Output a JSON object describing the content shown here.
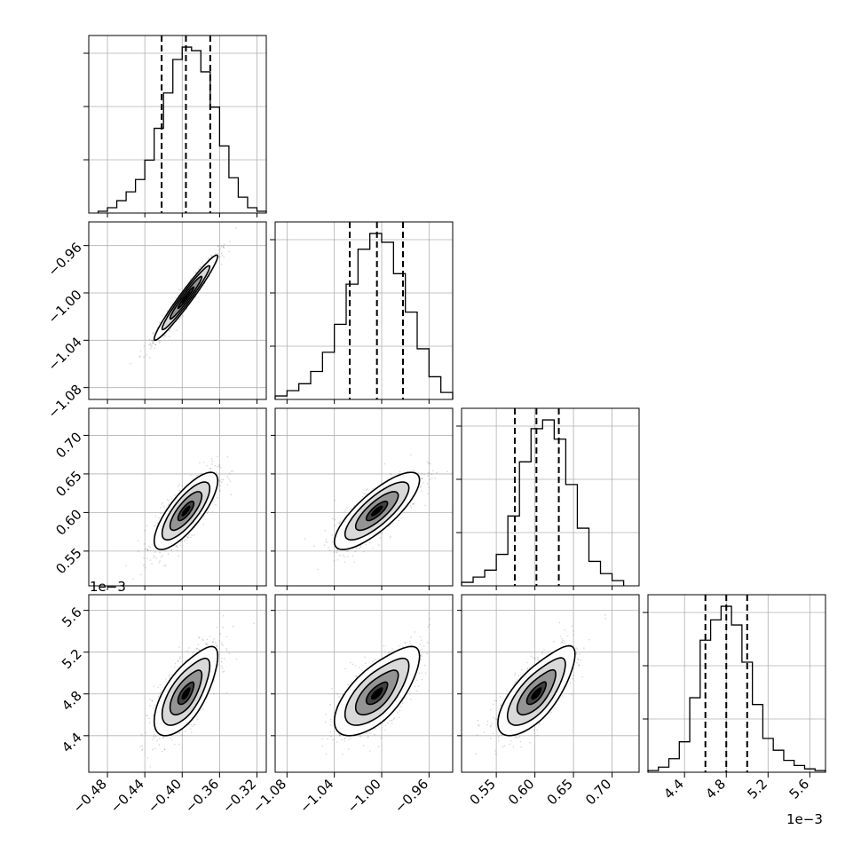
{
  "chart_data": {
    "type": "corner",
    "parameters": [
      {
        "index": 0,
        "range": [
          -0.5,
          -0.31
        ],
        "ticks": [
          -0.48,
          -0.44,
          -0.4,
          -0.36,
          -0.32
        ],
        "tick_labels": [
          "−0.48",
          "−0.44",
          "−0.40",
          "−0.36",
          "−0.32"
        ],
        "offset": ""
      },
      {
        "index": 1,
        "range": [
          -1.09,
          -0.94
        ],
        "ticks": [
          -1.08,
          -1.04,
          -1.0,
          -0.96
        ],
        "tick_labels": [
          "−1.08",
          "−1.04",
          "−1.00",
          "−0.96"
        ],
        "offset": ""
      },
      {
        "index": 2,
        "range": [
          0.505,
          0.735
        ],
        "ticks": [
          0.55,
          0.6,
          0.65,
          0.7
        ],
        "tick_labels": [
          "0.55",
          "0.60",
          "0.65",
          "0.70"
        ],
        "offset": ""
      },
      {
        "index": 3,
        "range": [
          4.05,
          5.75
        ],
        "ticks": [
          4.4,
          4.8,
          5.2,
          5.6
        ],
        "tick_labels": [
          "4.4",
          "4.8",
          "5.2",
          "5.6"
        ],
        "offset": "1e−3"
      }
    ],
    "histograms": [
      {
        "param": 0,
        "quantiles": [
          -0.422,
          -0.396,
          -0.37
        ],
        "bins": [
          -0.49,
          -0.48,
          -0.47,
          -0.46,
          -0.45,
          -0.44,
          -0.43,
          -0.42,
          -0.41,
          -0.4,
          -0.39,
          -0.38,
          -0.37,
          -0.36,
          -0.35,
          -0.34,
          -0.33,
          -0.32,
          -0.31
        ],
        "counts": [
          1,
          3,
          7,
          12,
          19,
          30,
          48,
          68,
          87,
          94,
          92,
          80,
          60,
          38,
          20,
          9,
          3,
          1
        ]
      },
      {
        "param": 1,
        "quantiles": [
          -1.027,
          -1.004,
          -0.982
        ],
        "bins": [
          -1.09,
          -1.08,
          -1.07,
          -1.06,
          -1.05,
          -1.04,
          -1.03,
          -1.02,
          -1.01,
          -1.0,
          -0.99,
          -0.98,
          -0.97,
          -0.96,
          -0.95,
          -0.94
        ],
        "counts": [
          2,
          5,
          9,
          16,
          27,
          43,
          66,
          86,
          95,
          90,
          72,
          50,
          29,
          13,
          4
        ]
      },
      {
        "param": 2,
        "quantiles": [
          0.574,
          0.602,
          0.631
        ],
        "bins": [
          0.505,
          0.52,
          0.535,
          0.55,
          0.565,
          0.58,
          0.595,
          0.61,
          0.625,
          0.64,
          0.655,
          0.67,
          0.685,
          0.7,
          0.715
        ],
        "counts": [
          2,
          5,
          9,
          18,
          40,
          71,
          90,
          95,
          84,
          58,
          33,
          14,
          7,
          3
        ]
      },
      {
        "param": 3,
        "quantiles": [
          4.6,
          4.8,
          5.0
        ],
        "bins": [
          4.05,
          4.15,
          4.25,
          4.35,
          4.45,
          4.55,
          4.65,
          4.75,
          4.85,
          4.95,
          5.05,
          5.15,
          5.25,
          5.35,
          5.45,
          5.55,
          5.65,
          5.75
        ],
        "counts": [
          1,
          3,
          8,
          18,
          44,
          78,
          90,
          98,
          87,
          65,
          40,
          20,
          13,
          7,
          4,
          2,
          1
        ]
      }
    ],
    "pairs": [
      {
        "x": 1,
        "y": 0,
        "x_param": 0,
        "y_param": 1,
        "center": [
          -0.396,
          -1.004
        ],
        "sd": [
          0.017,
          0.018
        ],
        "rho": 0.97,
        "skew_right": 0
      },
      {
        "x": 2,
        "y": 0,
        "x_param": 0,
        "y_param": 2,
        "center": [
          -0.396,
          0.602
        ],
        "sd": [
          0.017,
          0.025
        ],
        "rho": 0.78,
        "skew_right": 0
      },
      {
        "x": 2,
        "y": 1,
        "x_param": 1,
        "y_param": 2,
        "center": [
          -1.004,
          0.602
        ],
        "sd": [
          0.018,
          0.025
        ],
        "rho": 0.8,
        "skew_right": 0
      },
      {
        "x": 3,
        "y": 0,
        "x_param": 0,
        "y_param": 3,
        "center": [
          -0.396,
          4.8
        ],
        "sd": [
          0.017,
          0.2
        ],
        "rho": 0.65,
        "skew_right": 1
      },
      {
        "x": 3,
        "y": 1,
        "x_param": 1,
        "y_param": 3,
        "center": [
          -1.004,
          4.8
        ],
        "sd": [
          0.018,
          0.2
        ],
        "rho": 0.65,
        "skew_right": 1
      },
      {
        "x": 3,
        "y": 2,
        "x_param": 2,
        "y_param": 3,
        "center": [
          0.602,
          4.8
        ],
        "sd": [
          0.025,
          0.2
        ],
        "rho": 0.7,
        "skew_right": 1
      }
    ],
    "contour_levels_sigma": [
      0.5,
      1.0,
      1.5,
      2.0
    ],
    "grid": true,
    "legend": "none"
  }
}
